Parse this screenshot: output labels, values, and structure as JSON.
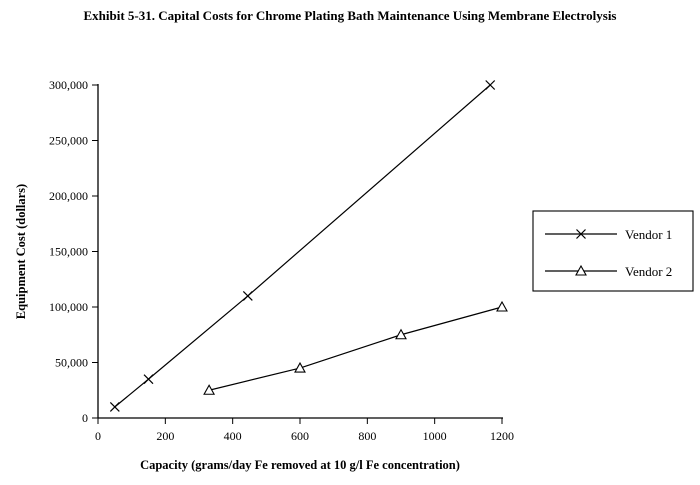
{
  "title": "Exhibit 5-31. Capital Costs for Chrome Plating Bath Maintenance Using Membrane Electrolysis",
  "chart_data": {
    "type": "line",
    "title": "Exhibit 5-31. Capital Costs for Chrome Plating Bath Maintenance Using Membrane Electrolysis",
    "xlabel": "Capacity (grams/day Fe removed at 10 g/l Fe concentration)",
    "ylabel": "Equipment Cost (dollars)",
    "xlim": [
      0,
      1200
    ],
    "ylim": [
      0,
      300000
    ],
    "xticks": [
      0,
      200,
      400,
      600,
      800,
      1000,
      1200
    ],
    "xtick_labels": [
      "0",
      "200",
      "400",
      "600",
      "800",
      "1000",
      "1200"
    ],
    "yticks": [
      0,
      50000,
      100000,
      150000,
      200000,
      250000,
      300000
    ],
    "ytick_labels": [
      "0",
      "50,000",
      "100,000",
      "150,000",
      "200,000",
      "250,000",
      "300,000"
    ],
    "grid": false,
    "legend_position": "right",
    "series": [
      {
        "name": "Vendor 1",
        "marker": "x",
        "color": "#000000",
        "points": [
          [
            50,
            10000
          ],
          [
            150,
            35000
          ],
          [
            445,
            110000
          ],
          [
            1165,
            300000
          ]
        ]
      },
      {
        "name": "Vendor 2",
        "marker": "triangle",
        "color": "#000000",
        "points": [
          [
            330,
            25000
          ],
          [
            600,
            45000
          ],
          [
            900,
            75000
          ],
          [
            1200,
            100000
          ]
        ]
      }
    ]
  }
}
